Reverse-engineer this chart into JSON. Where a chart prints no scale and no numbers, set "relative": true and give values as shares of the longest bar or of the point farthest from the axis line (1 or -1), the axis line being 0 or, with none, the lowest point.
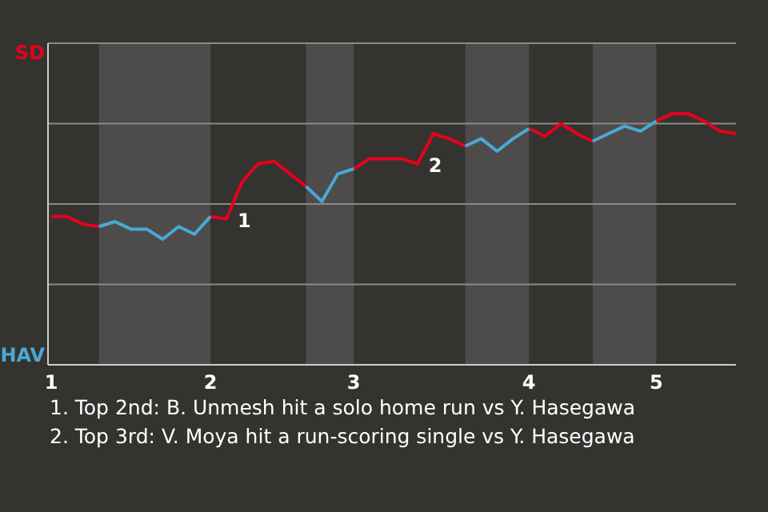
{
  "chart_data": {
    "type": "line",
    "relative": true,
    "legend": "left",
    "grid": "y",
    "marker": "none",
    "line_style": "solid",
    "categories": [
      "1",
      null,
      null,
      null,
      null,
      null,
      null,
      null,
      null,
      null,
      "2",
      null,
      null,
      null,
      null,
      null,
      null,
      null,
      null,
      "3",
      null,
      null,
      null,
      null,
      null,
      null,
      null,
      null,
      null,
      null,
      "4",
      null,
      null,
      null,
      null,
      null,
      null,
      null,
      "5",
      null,
      null,
      null,
      null,
      null
    ],
    "series": [
      {
        "name": "SD",
        "color": "#e8001c",
        "values": [
          0.59,
          0.59,
          0.56,
          0.55,
          null,
          null,
          null,
          null,
          null,
          null,
          0.59,
          0.58,
          0.73,
          0.8,
          0.81,
          0.76,
          0.71,
          null,
          null,
          0.78,
          0.82,
          0.82,
          0.82,
          0.8,
          0.92,
          0.9,
          0.87,
          null,
          null,
          null,
          0.94,
          0.91,
          0.96,
          0.92,
          0.89,
          null,
          null,
          null,
          0.97,
          1,
          1,
          0.97,
          0.93,
          0.92
        ]
      },
      {
        "name": "HAV",
        "color": "#4aa8d8",
        "values": [
          null,
          null,
          null,
          0.55,
          0.57,
          0.54,
          0.54,
          0.5,
          0.55,
          0.52,
          0.59,
          null,
          null,
          null,
          null,
          null,
          0.71,
          0.65,
          0.76,
          0.78,
          null,
          null,
          null,
          null,
          null,
          null,
          0.87,
          0.9,
          0.85,
          0.9,
          0.94,
          null,
          null,
          null,
          0.89,
          0.92,
          0.95,
          0.93,
          0.97,
          null,
          null,
          null,
          null,
          null
        ]
      }
    ],
    "annotations": [
      "1",
      "2",
      "1. Top 2nd: B. Unmesh hit a solo home run vs Y. Hasegawa",
      "2. Top 3rd: V. Moya hit a run-scoring single vs Y. Hasegawa"
    ]
  }
}
